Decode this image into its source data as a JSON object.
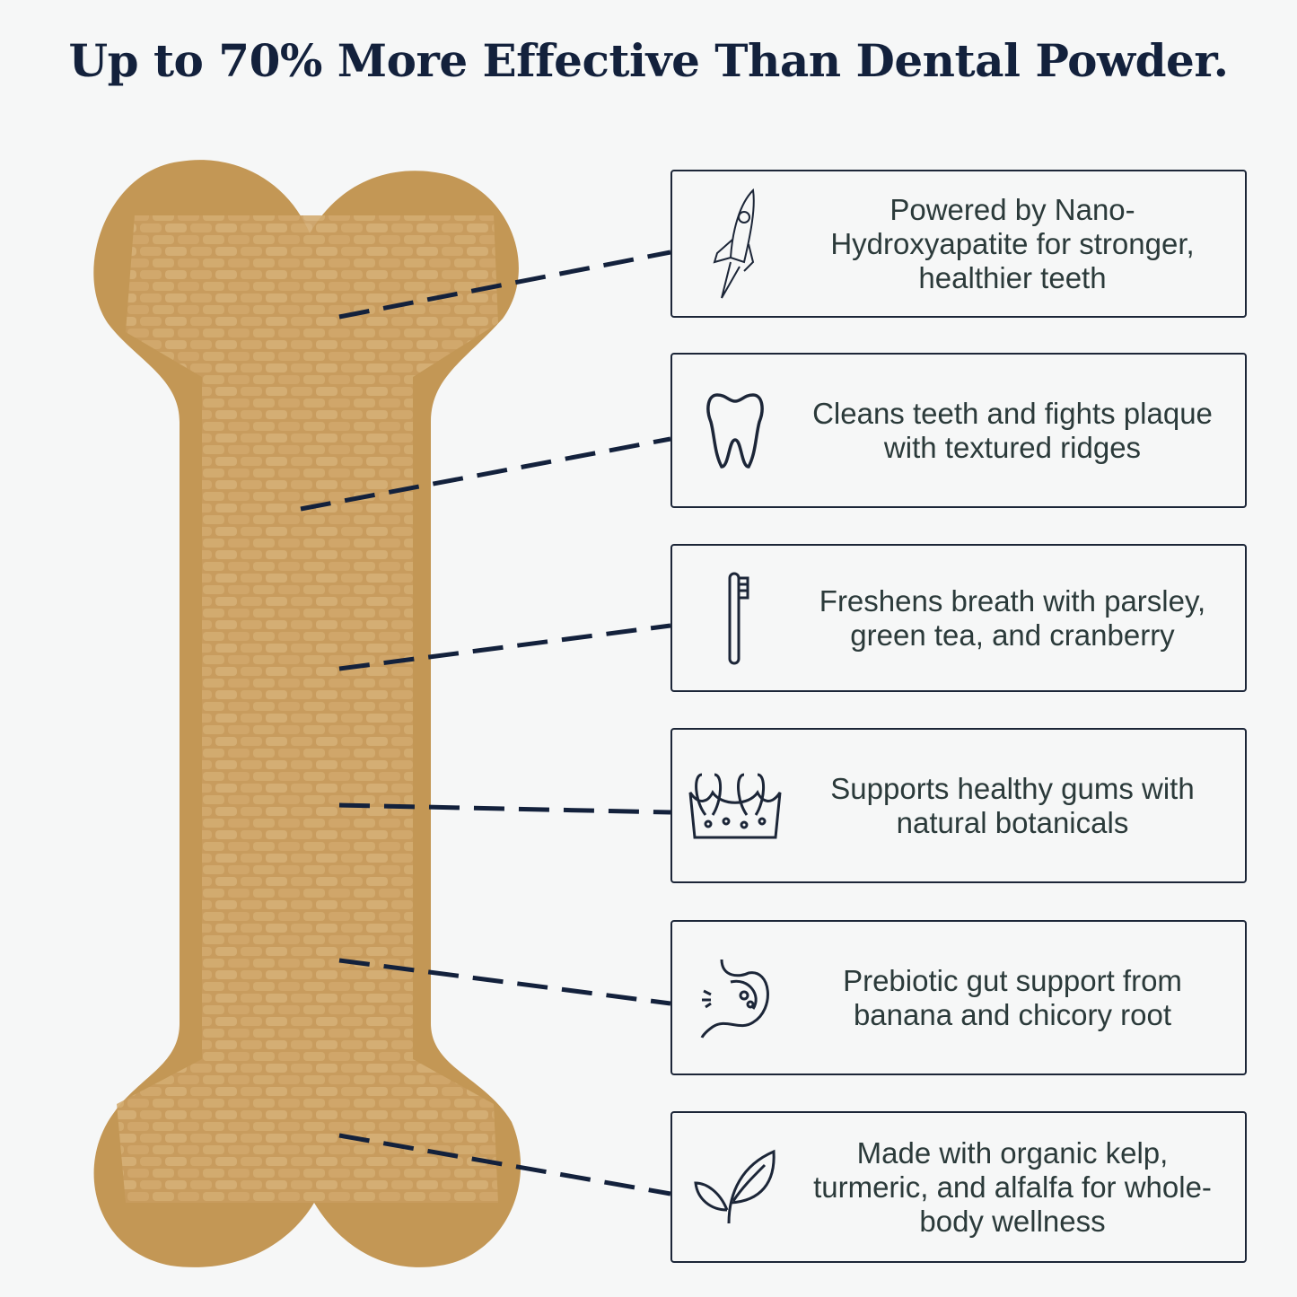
{
  "title": "Up to 70% More Effective Than Dental Powder.",
  "colors": {
    "text": "#13213c",
    "bone": "#c9a063",
    "line": "#13213c"
  },
  "features": [
    {
      "icon": "rocket-icon",
      "text": "Powered by Nano-Hydroxyapatite for stronger, healthier teeth"
    },
    {
      "icon": "tooth-icon",
      "text": "Cleans teeth and fights plaque with textured ridges"
    },
    {
      "icon": "toothbrush-icon",
      "text": "Freshens breath with parsley, green tea, and cranberry"
    },
    {
      "icon": "gums-icon",
      "text": "Supports healthy gums with natural botanicals"
    },
    {
      "icon": "stomach-icon",
      "text": "Prebiotic gut support from banana and chicory root"
    },
    {
      "icon": "leaf-icon",
      "text": "Made with organic kelp, turmeric, and alfalfa for whole-body wellness"
    }
  ]
}
